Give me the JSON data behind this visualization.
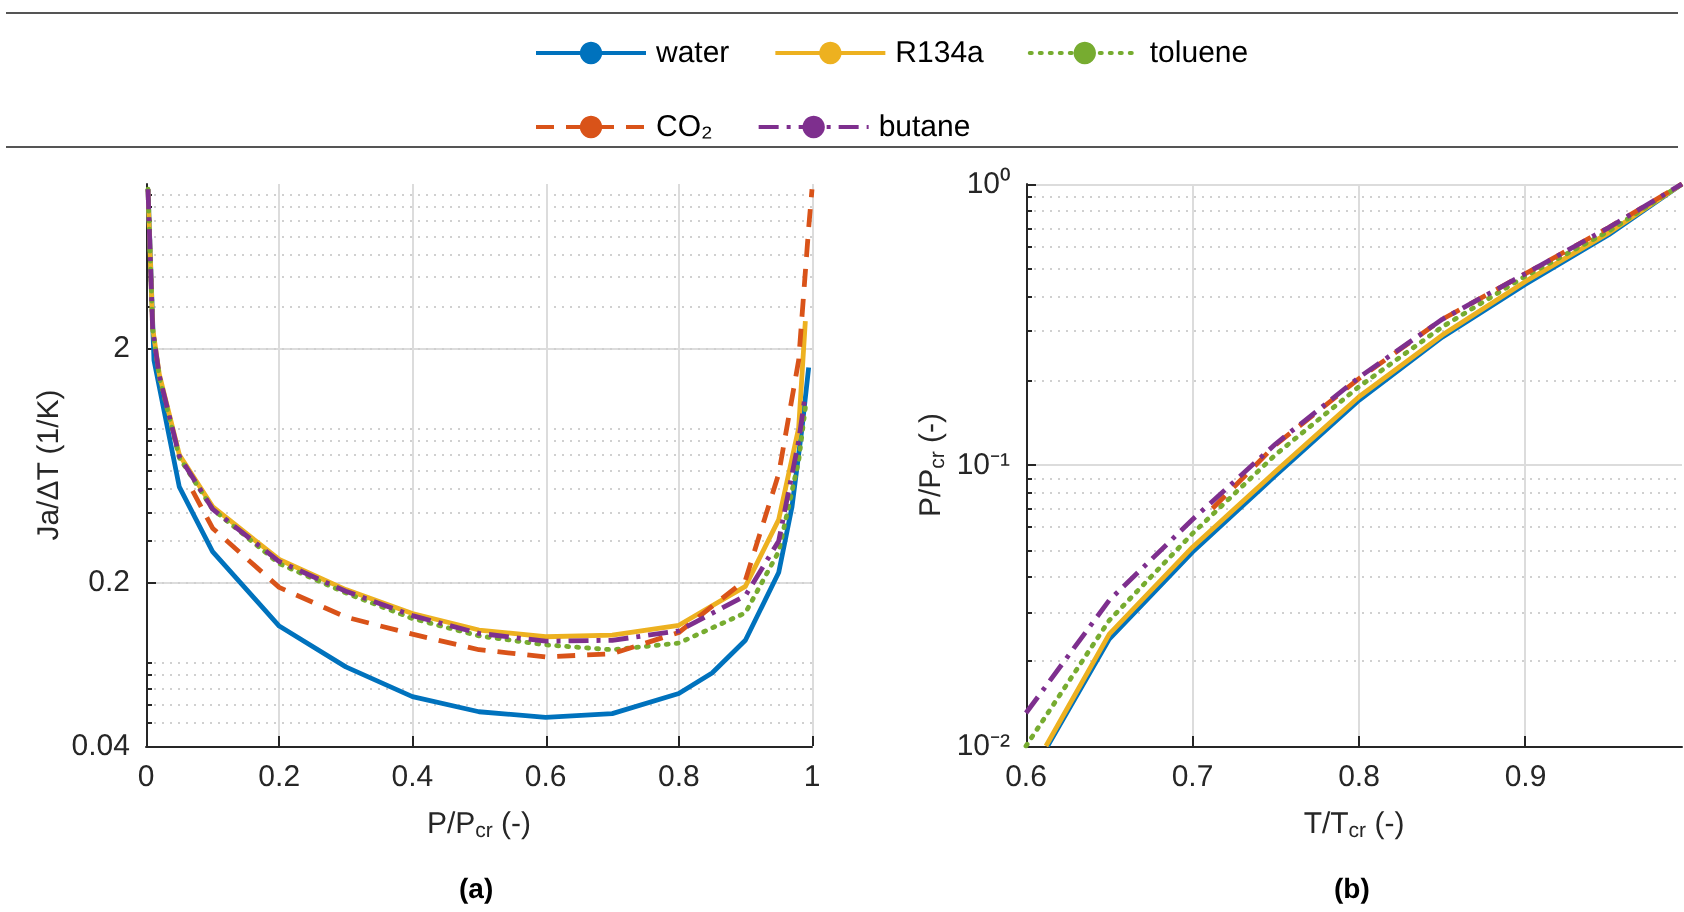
{
  "chart_data": [
    {
      "type": "line",
      "xlabel": "P/P$_{cr}$ (-)",
      "ylabel": "Ja/ΔT (1/K)",
      "annotations": [
        "(a)"
      ],
      "log": "y",
      "grid": true,
      "legend": "top",
      "xlim": [
        0,
        1
      ],
      "xticks": [
        0,
        0.2,
        0.4,
        0.6,
        0.8,
        1
      ],
      "ylim": [
        0.04,
        10
      ],
      "yticks": [
        0.04,
        0.2,
        2
      ],
      "series": [
        {
          "name": "water",
          "color": "#0072bd",
          "line_style": "solid",
          "x": [
            0.003,
            0.012,
            0.05,
            0.1,
            0.2,
            0.3,
            0.4,
            0.5,
            0.6,
            0.7,
            0.8,
            0.85,
            0.9,
            0.95,
            0.97,
            0.985,
            0.995
          ],
          "values": [
            9.5,
            1.77,
            0.51,
            0.27,
            0.13,
            0.087,
            0.065,
            0.056,
            0.053,
            0.055,
            0.067,
            0.082,
            0.113,
            0.22,
            0.42,
            0.91,
            1.65
          ]
        },
        {
          "name": "R134a",
          "color": "#edb120",
          "line_style": "solid",
          "x": [
            0.003,
            0.01,
            0.02,
            0.05,
            0.1,
            0.2,
            0.3,
            0.4,
            0.5,
            0.6,
            0.7,
            0.8,
            0.9,
            0.95,
            0.98,
            0.99
          ],
          "values": [
            9.5,
            2.43,
            1.54,
            0.7,
            0.42,
            0.25,
            0.186,
            0.147,
            0.125,
            0.117,
            0.119,
            0.131,
            0.192,
            0.37,
            0.91,
            2.6
          ]
        },
        {
          "name": "toluene",
          "color": "#77ac30",
          "line_style": "dotted",
          "x": [
            0.003,
            0.01,
            0.02,
            0.05,
            0.1,
            0.2,
            0.3,
            0.4,
            0.5,
            0.6,
            0.7,
            0.8,
            0.9,
            0.95,
            0.98,
            0.99
          ],
          "values": [
            9.5,
            2.4,
            1.5,
            0.68,
            0.41,
            0.24,
            0.18,
            0.14,
            0.118,
            0.108,
            0.103,
            0.11,
            0.148,
            0.27,
            0.66,
            1.11
          ]
        },
        {
          "name": "CO₂",
          "color": "#d95319",
          "line_style": "dashed",
          "x": [
            0.07,
            0.1,
            0.2,
            0.3,
            0.4,
            0.5,
            0.6,
            0.7,
            0.8,
            0.9,
            0.95,
            0.98,
            0.995,
            1
          ],
          "values": [
            0.49,
            0.34,
            0.19,
            0.142,
            0.12,
            0.103,
            0.096,
            0.099,
            0.122,
            0.204,
            0.58,
            1.77,
            6.5,
            9.5
          ]
        },
        {
          "name": "butane",
          "color": "#7e2f8e",
          "line_style": "dashdot",
          "x": [
            0.003,
            0.01,
            0.02,
            0.05,
            0.1,
            0.2,
            0.3,
            0.4,
            0.5,
            0.6,
            0.7,
            0.8,
            0.9,
            0.95,
            0.98,
            0.99
          ],
          "values": [
            9.5,
            2.4,
            1.52,
            0.69,
            0.41,
            0.245,
            0.183,
            0.144,
            0.121,
            0.112,
            0.113,
            0.124,
            0.175,
            0.3,
            0.8,
            1.27
          ]
        }
      ]
    },
    {
      "type": "line",
      "xlabel": "T/T$_{cr}$ (-)",
      "ylabel": "P/P$_{cr}$ (-)",
      "annotations": [
        "(b)"
      ],
      "log": "y",
      "grid": true,
      "xlim": [
        0.6,
        0.994
      ],
      "xticks": [
        0.6,
        0.7,
        0.8,
        0.9
      ],
      "ylim": [
        0.01,
        1
      ],
      "yticks": [
        {
          "value": 0.01,
          "label": "10⁻²"
        },
        {
          "value": 0.1,
          "label": "10⁻¹"
        },
        {
          "value": 1,
          "label": "10⁰"
        }
      ],
      "series": [
        {
          "color": "#0072bd",
          "line_style": "solid",
          "x": [
            0.613,
            0.65,
            0.7,
            0.75,
            0.8,
            0.85,
            0.9,
            0.95,
            0.994
          ],
          "values": [
            0.01,
            0.024,
            0.049,
            0.092,
            0.17,
            0.285,
            0.44,
            0.66,
            1
          ]
        },
        {
          "color": "#edb120",
          "line_style": "solid",
          "x": [
            0.612,
            0.65,
            0.7,
            0.75,
            0.8,
            0.85,
            0.9,
            0.95,
            0.994
          ],
          "values": [
            0.01,
            0.025,
            0.051,
            0.095,
            0.175,
            0.29,
            0.45,
            0.67,
            1
          ]
        },
        {
          "color": "#77ac30",
          "line_style": "dotted",
          "x": [
            0.6,
            0.65,
            0.7,
            0.75,
            0.8,
            0.85,
            0.9,
            0.95,
            0.994
          ],
          "values": [
            0.01,
            0.028,
            0.057,
            0.109,
            0.19,
            0.31,
            0.47,
            0.68,
            1
          ]
        },
        {
          "color": "#d95319",
          "line_style": "dashed",
          "x": [
            0.712,
            0.75,
            0.8,
            0.85,
            0.9,
            0.95,
            0.994
          ],
          "values": [
            0.07,
            0.118,
            0.203,
            0.33,
            0.48,
            0.7,
            1
          ]
        },
        {
          "color": "#7e2f8e",
          "line_style": "dashdot",
          "x": [
            0.6,
            0.65,
            0.7,
            0.75,
            0.8,
            0.85,
            0.9,
            0.95,
            0.994
          ],
          "values": [
            0.0131,
            0.033,
            0.064,
            0.119,
            0.205,
            0.33,
            0.48,
            0.7,
            1
          ]
        }
      ]
    }
  ]
}
